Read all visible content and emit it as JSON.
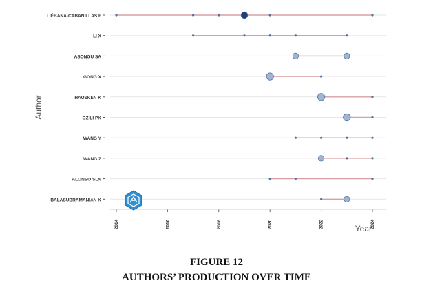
{
  "caption": {
    "number": "FIGURE 12",
    "title": "AUTHORS’ PRODUCTION OVER TIME"
  },
  "colors": {
    "line": "#d9a0a4",
    "point_light": "#9fb5d3",
    "point_mid": "#4f73a6",
    "point_dark": "#1f3f7a",
    "grid": "#e6e6e6",
    "watermark": "#2f8fd0"
  },
  "chart_data": {
    "type": "scatter",
    "subtype": "timeline-dot",
    "xlabel": "Year",
    "ylabel": "Author",
    "xlim": [
      2013.8,
      2024.4
    ],
    "x_ticks": [
      "2014",
      "2016",
      "2018",
      "2020",
      "2022",
      "2024"
    ],
    "grid": true,
    "authors": [
      {
        "name": "LIÉBANA-CABANILLAS F",
        "span": [
          2014,
          2024
        ],
        "points": [
          {
            "year": 2014,
            "size": 1
          },
          {
            "year": 2017,
            "size": 1
          },
          {
            "year": 2018,
            "size": 1
          },
          {
            "year": 2019,
            "size": 4
          },
          {
            "year": 2020,
            "size": 1
          },
          {
            "year": 2024,
            "size": 1
          }
        ]
      },
      {
        "name": "LI X",
        "span": [
          2017,
          2023
        ],
        "points": [
          {
            "year": 2017,
            "size": 1
          },
          {
            "year": 2019,
            "size": 1
          },
          {
            "year": 2020,
            "size": 1
          },
          {
            "year": 2021,
            "size": 1
          },
          {
            "year": 2023,
            "size": 1
          }
        ]
      },
      {
        "name": "ASONGU SA",
        "span": [
          2021,
          2023
        ],
        "points": [
          {
            "year": 2021,
            "size": 2
          },
          {
            "year": 2023,
            "size": 2
          }
        ]
      },
      {
        "name": "GONG X",
        "span": [
          2020,
          2022
        ],
        "points": [
          {
            "year": 2020,
            "size": 3
          },
          {
            "year": 2022,
            "size": 1
          }
        ]
      },
      {
        "name": "HAUSKEN K",
        "span": [
          2022,
          2024
        ],
        "points": [
          {
            "year": 2022,
            "size": 3
          },
          {
            "year": 2024,
            "size": 1
          }
        ]
      },
      {
        "name": "OZILI PK",
        "span": [
          2023,
          2024
        ],
        "points": [
          {
            "year": 2023,
            "size": 3
          },
          {
            "year": 2024,
            "size": 1
          }
        ]
      },
      {
        "name": "WANG Y",
        "span": [
          2021,
          2024
        ],
        "points": [
          {
            "year": 2021,
            "size": 1
          },
          {
            "year": 2022,
            "size": 1
          },
          {
            "year": 2023,
            "size": 1
          },
          {
            "year": 2024,
            "size": 1
          }
        ]
      },
      {
        "name": "WANG Z",
        "span": [
          2022,
          2024
        ],
        "points": [
          {
            "year": 2022,
            "size": 2
          },
          {
            "year": 2023,
            "size": 1
          },
          {
            "year": 2024,
            "size": 1
          }
        ]
      },
      {
        "name": "ALONSO SLN",
        "span": [
          2020,
          2024
        ],
        "points": [
          {
            "year": 2020,
            "size": 1
          },
          {
            "year": 2021,
            "size": 1
          },
          {
            "year": 2024,
            "size": 1
          }
        ]
      },
      {
        "name": "BALASUBRAMANIAN K",
        "span": [
          2022,
          2023
        ],
        "points": [
          {
            "year": 2022,
            "size": 1
          },
          {
            "year": 2023,
            "size": 2
          }
        ]
      }
    ]
  }
}
